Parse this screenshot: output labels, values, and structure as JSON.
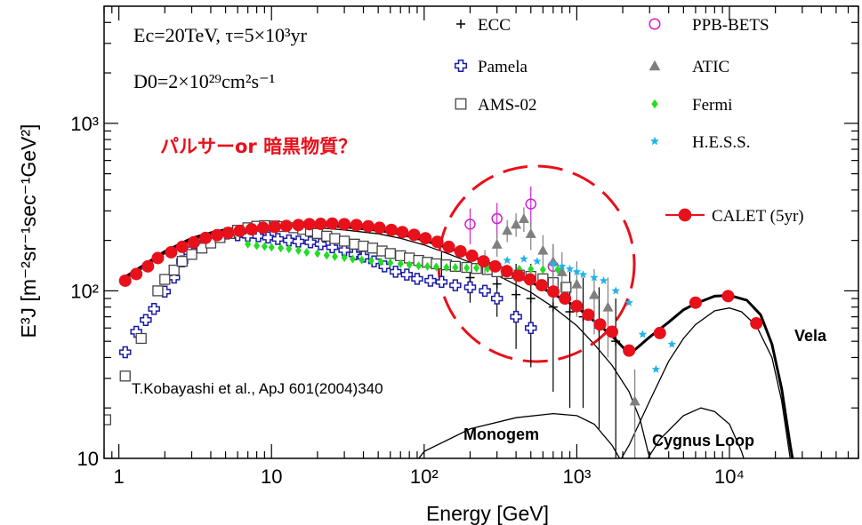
{
  "chart_data": {
    "type": "scatter",
    "x_scale": "log",
    "y_scale": "log",
    "xlim": [
      0.8,
      70000
    ],
    "ylim": [
      10,
      5000
    ],
    "xlabel": "Energy [GeV]",
    "ylabel": "E³J [m⁻²sr⁻¹sec⁻¹GeV²]",
    "x_ticks": [
      {
        "value": 1,
        "label": "1"
      },
      {
        "value": 10,
        "label": "10"
      },
      {
        "value": 100,
        "label": "10²"
      },
      {
        "value": 1000,
        "label": "10³"
      },
      {
        "value": 10000,
        "label": "10⁴"
      }
    ],
    "y_ticks": [
      {
        "value": 10,
        "label": "10"
      },
      {
        "value": 100,
        "label": "10²"
      },
      {
        "value": 1000,
        "label": "10³"
      }
    ],
    "parameters": {
      "line1": "Ec=20TeV, τ=5×10³yr",
      "line2": "D0=2×10²⁹cm²s⁻¹"
    },
    "annotations": {
      "question": "パルサーor 暗黒物質？",
      "reference": "T.Kobayashi et al., ApJ 601(2004)340",
      "vela": "Vela",
      "monogem": "Monogem",
      "cygnus": "Cygnus Loop"
    },
    "colors": {
      "calet": "#e8101b",
      "pamela": "#1a1aa8",
      "ams": "#444444",
      "ppb": "#d020d0",
      "atic": "#7f7f7f",
      "fermi": "#22dd22",
      "hess": "#22b4e8",
      "ecc": "#000000",
      "circle": "#e8101b"
    },
    "series": [
      {
        "name": "ECC",
        "marker": "plus",
        "color": "#000000",
        "points": [
          [
            130,
            140,
            30
          ],
          [
            200,
            120,
            35
          ],
          [
            300,
            110,
            40
          ],
          [
            400,
            95,
            50
          ],
          [
            500,
            90,
            55
          ],
          [
            700,
            80,
            55
          ],
          [
            900,
            75,
            55
          ],
          [
            1100,
            70,
            50
          ],
          [
            1400,
            60,
            45
          ],
          [
            1800,
            50,
            40
          ]
        ]
      },
      {
        "name": "Pamela",
        "marker": "cross",
        "color": "#1a1aa8",
        "points": [
          [
            1.1,
            43
          ],
          [
            1.3,
            57
          ],
          [
            1.5,
            67
          ],
          [
            1.7,
            78
          ],
          [
            2.0,
            99
          ],
          [
            2.3,
            120
          ],
          [
            2.6,
            150
          ],
          [
            2.9,
            170
          ],
          [
            3.3,
            185
          ],
          [
            3.8,
            200
          ],
          [
            4.4,
            210
          ],
          [
            5.1,
            220
          ],
          [
            6.0,
            215
          ],
          [
            7.0,
            213
          ],
          [
            8.2,
            212
          ],
          [
            9.5,
            208
          ],
          [
            11,
            204
          ],
          [
            13,
            200
          ],
          [
            15,
            197
          ],
          [
            18,
            195
          ],
          [
            21,
            190
          ],
          [
            25,
            182
          ],
          [
            30,
            175
          ],
          [
            35,
            165
          ],
          [
            40,
            160
          ],
          [
            47,
            150
          ],
          [
            55,
            140
          ],
          [
            65,
            130
          ],
          [
            77,
            125
          ],
          [
            90,
            118
          ],
          [
            110,
            115
          ],
          [
            130,
            113
          ],
          [
            160,
            108
          ],
          [
            200,
            105
          ],
          [
            250,
            100
          ],
          [
            300,
            90
          ],
          [
            400,
            70
          ],
          [
            500,
            60
          ]
        ]
      },
      {
        "name": "AMS-02",
        "marker": "square",
        "color": "#444444",
        "points": [
          [
            0.82,
            17
          ],
          [
            1.1,
            31
          ],
          [
            1.4,
            52
          ],
          [
            1.8,
            100
          ],
          [
            2.0,
            117
          ],
          [
            2.3,
            133
          ],
          [
            2.6,
            150
          ],
          [
            3.0,
            165
          ],
          [
            3.5,
            180
          ],
          [
            4,
            193
          ],
          [
            4.6,
            208
          ],
          [
            5.3,
            220
          ],
          [
            6.0,
            230
          ],
          [
            7.0,
            238
          ],
          [
            8.0,
            243
          ],
          [
            9.0,
            245
          ],
          [
            10.5,
            244
          ],
          [
            12,
            242
          ],
          [
            14,
            238
          ],
          [
            16,
            233
          ],
          [
            18,
            227
          ],
          [
            20,
            220
          ],
          [
            23,
            212
          ],
          [
            26,
            205
          ],
          [
            30,
            198
          ],
          [
            35,
            190
          ],
          [
            40,
            185
          ],
          [
            46,
            180
          ],
          [
            53,
            173
          ],
          [
            60,
            167
          ],
          [
            70,
            162
          ],
          [
            80,
            157
          ],
          [
            92,
            152
          ],
          [
            105,
            148
          ],
          [
            120,
            145
          ],
          [
            140,
            143
          ],
          [
            160,
            140
          ],
          [
            190,
            138
          ],
          [
            220,
            136
          ],
          [
            260,
            134
          ],
          [
            300,
            130
          ],
          [
            350,
            127
          ],
          [
            420,
            124
          ],
          [
            500,
            122
          ],
          [
            600,
            118
          ],
          [
            700,
            112
          ],
          [
            850,
            105
          ]
        ]
      },
      {
        "name": "PPB-BETS",
        "marker": "circle-open",
        "color": "#d020d0",
        "points": [
          [
            200,
            250,
            60
          ],
          [
            300,
            270,
            65
          ],
          [
            500,
            330,
            90
          ],
          [
            700,
            140,
            50
          ]
        ]
      },
      {
        "name": "ATIC",
        "marker": "triangle",
        "color": "#7f7f7f",
        "points": [
          [
            250,
            150,
            25
          ],
          [
            300,
            190,
            30
          ],
          [
            350,
            230,
            35
          ],
          [
            400,
            250,
            40
          ],
          [
            450,
            270,
            45
          ],
          [
            500,
            220,
            45
          ],
          [
            600,
            175,
            40
          ],
          [
            700,
            150,
            40
          ],
          [
            800,
            130,
            40
          ],
          [
            1000,
            110,
            40
          ],
          [
            1300,
            95,
            40
          ],
          [
            1600,
            80,
            40
          ],
          [
            2400,
            22,
            12
          ]
        ]
      },
      {
        "name": "Fermi",
        "marker": "diamond",
        "color": "#22dd22",
        "points": [
          [
            7,
            190
          ],
          [
            8,
            186
          ],
          [
            9,
            184
          ],
          [
            10,
            182
          ],
          [
            11.5,
            180
          ],
          [
            13,
            178
          ],
          [
            15,
            174
          ],
          [
            17,
            170
          ],
          [
            20,
            167
          ],
          [
            23,
            163
          ],
          [
            26,
            160
          ],
          [
            30,
            158
          ],
          [
            34,
            155
          ],
          [
            39,
            153
          ],
          [
            45,
            151
          ],
          [
            52,
            149
          ],
          [
            60,
            147
          ],
          [
            70,
            145
          ],
          [
            80,
            143
          ],
          [
            92,
            141
          ],
          [
            105,
            140
          ],
          [
            120,
            139
          ],
          [
            140,
            138
          ],
          [
            160,
            138
          ],
          [
            190,
            137
          ],
          [
            220,
            137
          ],
          [
            260,
            136
          ],
          [
            300,
            136
          ],
          [
            350,
            136
          ],
          [
            420,
            135
          ],
          [
            500,
            135
          ],
          [
            600,
            134
          ],
          [
            750,
            134
          ]
        ]
      },
      {
        "name": "H.E.S.S.",
        "marker": "star",
        "color": "#22b4e8",
        "points": [
          [
            350,
            152
          ],
          [
            450,
            155
          ],
          [
            550,
            150
          ],
          [
            700,
            145
          ],
          [
            800,
            140
          ],
          [
            900,
            135
          ],
          [
            1000,
            130
          ],
          [
            1100,
            125
          ],
          [
            1300,
            120
          ],
          [
            1500,
            115
          ],
          [
            1800,
            100
          ],
          [
            2200,
            85
          ],
          [
            2700,
            55
          ],
          [
            3300,
            34
          ],
          [
            4200,
            48
          ]
        ]
      },
      {
        "name": "CALET (5yr)",
        "marker": "circle-filled",
        "color": "#e8101b",
        "points": [
          [
            1.1,
            115
          ],
          [
            1.3,
            126
          ],
          [
            1.55,
            140
          ],
          [
            1.8,
            157
          ],
          [
            2.2,
            170
          ],
          [
            2.6,
            183
          ],
          [
            3.1,
            195
          ],
          [
            3.7,
            207
          ],
          [
            4.4,
            215
          ],
          [
            5.2,
            222
          ],
          [
            6.2,
            228
          ],
          [
            7.4,
            233
          ],
          [
            8.8,
            238
          ],
          [
            10.5,
            241
          ],
          [
            12.5,
            244
          ],
          [
            15,
            247
          ],
          [
            17.7,
            250
          ],
          [
            21,
            251
          ],
          [
            25,
            252
          ],
          [
            30,
            250
          ],
          [
            36,
            247
          ],
          [
            43,
            243
          ],
          [
            51,
            238
          ],
          [
            61,
            231
          ],
          [
            72,
            224
          ],
          [
            86,
            216
          ],
          [
            102,
            206
          ],
          [
            122,
            196
          ],
          [
            145,
            183
          ],
          [
            173,
            172
          ],
          [
            206,
            162
          ],
          [
            245,
            150
          ],
          [
            292,
            140
          ],
          [
            348,
            131
          ],
          [
            415,
            123
          ],
          [
            494,
            117
          ],
          [
            589,
            108
          ],
          [
            702,
            99
          ],
          [
            837,
            90
          ],
          [
            998,
            81
          ],
          [
            1190,
            72
          ],
          [
            1420,
            63
          ],
          [
            1700,
            57
          ],
          [
            2200,
            44
          ],
          [
            3500,
            56
          ],
          [
            6000,
            85
          ],
          [
            9800,
            93
          ],
          [
            15000,
            64
          ]
        ]
      }
    ],
    "curves": {
      "total": [
        [
          1.1,
          121
        ],
        [
          1.5,
          145
        ],
        [
          2,
          172
        ],
        [
          3,
          206
        ],
        [
          4,
          222
        ],
        [
          5,
          232
        ],
        [
          7,
          242
        ],
        [
          10,
          247
        ],
        [
          15,
          249
        ],
        [
          20,
          247
        ],
        [
          30,
          241
        ],
        [
          50,
          230
        ],
        [
          70,
          218
        ],
        [
          100,
          200
        ],
        [
          150,
          178
        ],
        [
          200,
          162
        ],
        [
          300,
          140
        ],
        [
          500,
          113
        ],
        [
          700,
          96
        ],
        [
          1000,
          80
        ],
        [
          1300,
          66
        ],
        [
          1700,
          54
        ],
        [
          2100,
          44
        ],
        [
          2300,
          43
        ],
        [
          3000,
          53
        ],
        [
          4000,
          65
        ],
        [
          5000,
          77
        ],
        [
          6000,
          84
        ],
        [
          8000,
          93
        ],
        [
          10000,
          94
        ],
        [
          13000,
          88
        ],
        [
          16000,
          72
        ],
        [
          19000,
          48
        ],
        [
          22000,
          26
        ],
        [
          25000,
          12
        ],
        [
          27000,
          8
        ]
      ],
      "background": [
        [
          1.1,
          117
        ],
        [
          1.5,
          140
        ],
        [
          2,
          167
        ],
        [
          3,
          200
        ],
        [
          4,
          216
        ],
        [
          5,
          226
        ],
        [
          7,
          236
        ],
        [
          10,
          240
        ],
        [
          15,
          241
        ],
        [
          20,
          238
        ],
        [
          30,
          231
        ],
        [
          50,
          219
        ],
        [
          70,
          206
        ],
        [
          100,
          188
        ],
        [
          150,
          164
        ],
        [
          200,
          148
        ],
        [
          300,
          124
        ],
        [
          500,
          98
        ],
        [
          700,
          80
        ],
        [
          1000,
          62
        ],
        [
          1300,
          48
        ],
        [
          1700,
          36
        ],
        [
          2200,
          25
        ],
        [
          2600,
          17
        ],
        [
          3000,
          10
        ],
        [
          3500,
          6
        ]
      ],
      "vela": [
        [
          1700,
          8
        ],
        [
          2200,
          12
        ],
        [
          3000,
          22
        ],
        [
          4000,
          38
        ],
        [
          5000,
          52
        ],
        [
          6000,
          63
        ],
        [
          8000,
          76
        ],
        [
          10000,
          79
        ],
        [
          12000,
          75
        ],
        [
          15000,
          62
        ],
        [
          19000,
          40
        ],
        [
          22000,
          22
        ],
        [
          25000,
          10
        ],
        [
          27000,
          6
        ]
      ],
      "monogem": [
        [
          60,
          6
        ],
        [
          100,
          11
        ],
        [
          200,
          15
        ],
        [
          400,
          17.5
        ],
        [
          700,
          18.5
        ],
        [
          1000,
          18
        ],
        [
          1300,
          16
        ],
        [
          1700,
          12
        ],
        [
          2200,
          8
        ],
        [
          2600,
          6
        ]
      ],
      "cygnus": [
        [
          1500,
          5
        ],
        [
          2500,
          8
        ],
        [
          3500,
          13
        ],
        [
          5000,
          18
        ],
        [
          6500,
          20
        ],
        [
          8000,
          19
        ],
        [
          10000,
          16
        ],
        [
          12000,
          11
        ],
        [
          14000,
          7
        ],
        [
          16000,
          5
        ]
      ]
    }
  }
}
